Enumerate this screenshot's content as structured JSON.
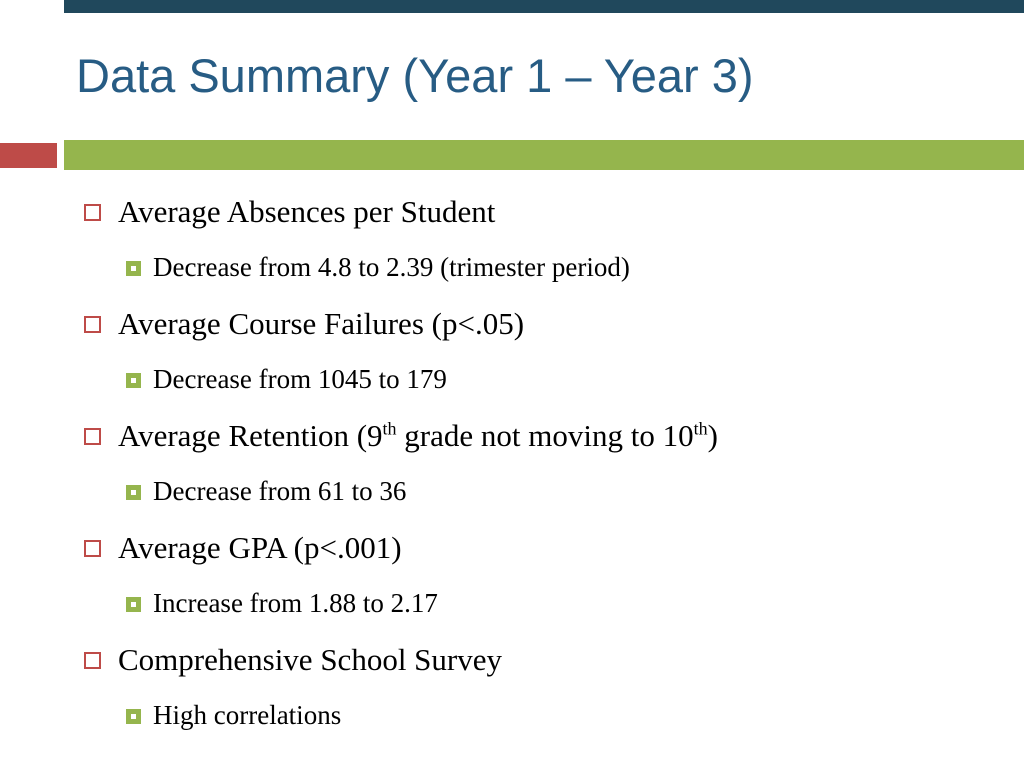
{
  "title": "Data Summary (Year 1 – Year 3)",
  "colors": {
    "title_color": "#275C84",
    "top_bar_color": "#20485C",
    "green_accent": "#95B54D",
    "red_accent": "#BE4B48",
    "text_color": "#000000"
  },
  "items": [
    {
      "heading": "Average Absences per Student",
      "sub": "Decrease from 4.8 to 2.39 (trimester period)"
    },
    {
      "heading": "Average Course Failures (p<.05)",
      "sub": "Decrease from 1045 to 179"
    },
    {
      "heading_parts": {
        "p1": "Average Retention (9",
        "sup1": "th",
        "p2": " grade not moving to 10",
        "sup2": "th",
        "p3": ")"
      },
      "sub": "Decrease from 61 to 36"
    },
    {
      "heading": "Average GPA (p<.001)",
      "sub": "Increase from 1.88 to 2.17"
    },
    {
      "heading": "Comprehensive School Survey",
      "sub": "High correlations"
    }
  ]
}
